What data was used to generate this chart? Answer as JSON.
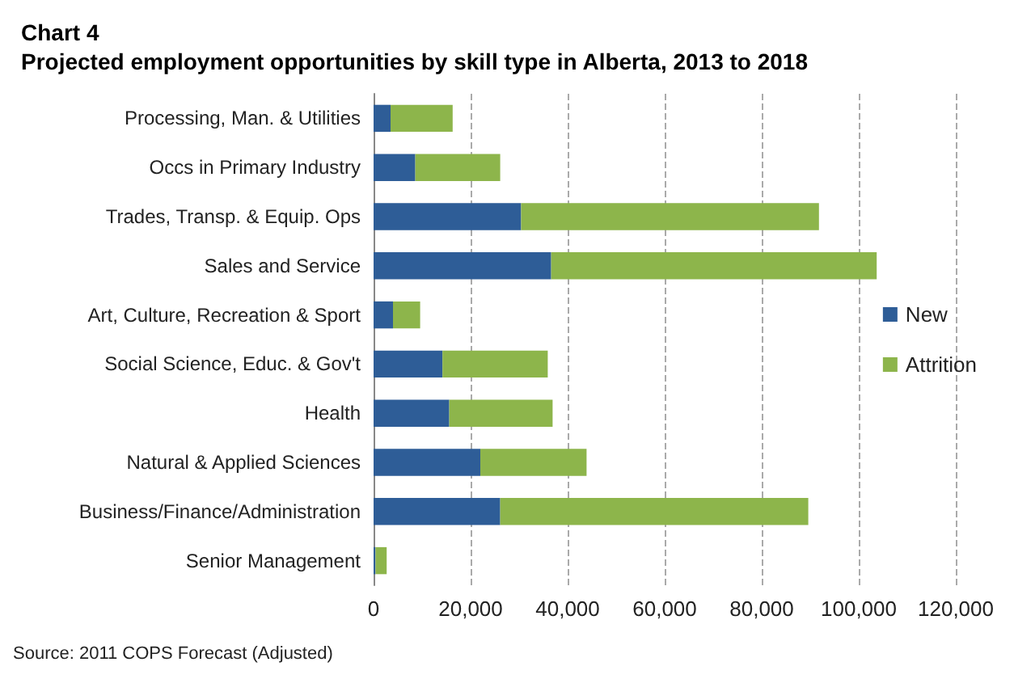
{
  "chart_data": {
    "type": "bar",
    "orientation": "horizontal",
    "stacked": true,
    "title": "Chart 4",
    "subtitle": "Projected employment opportunities by skill type in Alberta, 2013 to 2018",
    "categories": [
      "Processing, Man. & Utilities",
      "Occs in Primary Industry",
      "Trades, Transp. & Equip. Ops",
      "Sales and Service",
      "Art, Culture, Recreation & Sport",
      "Social Science, Educ. & Gov't",
      "Health",
      "Natural & Applied Sciences",
      "Business/Finance/Administration",
      "Senior Management"
    ],
    "series": [
      {
        "name": "New",
        "color": "#2e5d97",
        "values": [
          3500,
          8600,
          30400,
          36600,
          4000,
          14200,
          15600,
          22000,
          26100,
          400
        ]
      },
      {
        "name": "Attrition",
        "color": "#8db54b",
        "values": [
          12800,
          17500,
          61400,
          67100,
          5600,
          21700,
          21300,
          21900,
          63500,
          2300
        ]
      }
    ],
    "xlim": [
      0,
      120000
    ],
    "xticks": [
      {
        "value": 0,
        "label": "0"
      },
      {
        "value": 20000,
        "label": "20,000"
      },
      {
        "value": 40000,
        "label": "40,000"
      },
      {
        "value": 60000,
        "label": "60,000"
      },
      {
        "value": 80000,
        "label": "80,000"
      },
      {
        "value": 100000,
        "label": "100,000"
      },
      {
        "value": 120000,
        "label": "120,000"
      }
    ],
    "grid": "x",
    "legend": "right",
    "annotations": [
      "Source: 2011 COPS Forecast (Adjusted)"
    ]
  }
}
